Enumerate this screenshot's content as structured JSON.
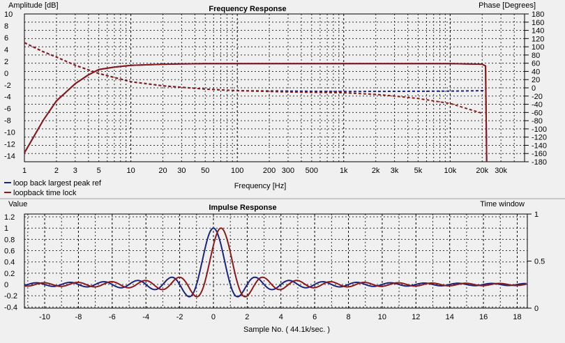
{
  "colors": {
    "background": "#f0f0f0",
    "series1": "#1a237e",
    "series2": "#8b1a1a",
    "grid": "#000000"
  },
  "legend": [
    {
      "label": "loop back largest peak ref",
      "color": "#1a237e"
    },
    {
      "label": "loopback time lock",
      "color": "#8b1a1a"
    }
  ],
  "chart_data": [
    {
      "type": "line",
      "title": "Frequency Response",
      "ylabel": "Amplitude [dB]",
      "y2label": "Phase [Degrees]",
      "xlabel": "Frequency [Hz]",
      "xscale": "log",
      "xlim": [
        1,
        50000
      ],
      "ylim": [
        -15,
        10
      ],
      "y2lim": [
        -180,
        180
      ],
      "xticks": [
        1,
        2,
        3,
        5,
        10,
        20,
        30,
        50,
        100,
        200,
        300,
        500,
        1000,
        2000,
        3000,
        5000,
        10000,
        20000,
        30000
      ],
      "xtick_labels": [
        "1",
        "2",
        "3",
        "5",
        "10",
        "20",
        "30",
        "50",
        "100",
        "200",
        "300",
        "500",
        "1k",
        "2k",
        "3k",
        "5k",
        "10k",
        "20k",
        "30k"
      ],
      "yticks": [
        10,
        8,
        6,
        4,
        2,
        0,
        -2,
        -4,
        -6,
        -8,
        -10,
        -12,
        -14
      ],
      "y2ticks": [
        180,
        160,
        140,
        120,
        100,
        80,
        60,
        40,
        20,
        0,
        -20,
        -40,
        -60,
        -80,
        -100,
        -120,
        -140,
        -160,
        -180
      ],
      "series": [
        {
          "name": "loop back largest peak ref",
          "axis": "left",
          "style": "solid",
          "color": "#1a237e",
          "x": [
            1,
            1.5,
            2,
            3,
            4,
            5,
            7,
            10,
            20,
            50,
            100,
            1000,
            10000,
            20000,
            21500,
            22050
          ],
          "y": [
            -13.5,
            -8,
            -4.7,
            -1.8,
            -0.3,
            0.6,
            1.0,
            1.3,
            1.5,
            1.6,
            1.6,
            1.6,
            1.6,
            1.5,
            1.2,
            -15
          ]
        },
        {
          "name": "loop back largest peak ref",
          "axis": "right",
          "style": "dashed",
          "color": "#1a237e",
          "x": [
            1,
            1.5,
            2,
            3,
            5,
            10,
            20,
            50,
            100,
            1000,
            10000,
            20000,
            21500,
            22050
          ],
          "y": [
            110,
            88,
            75,
            55,
            35,
            15,
            5,
            -3,
            -7,
            -9,
            -8,
            -7,
            -6,
            5
          ]
        },
        {
          "name": "loopback time lock",
          "axis": "left",
          "style": "solid",
          "color": "#8b1a1a",
          "x": [
            1,
            1.5,
            2,
            3,
            4,
            5,
            7,
            10,
            20,
            50,
            100,
            1000,
            10000,
            20000,
            21500,
            22050
          ],
          "y": [
            -13.5,
            -8,
            -4.7,
            -1.8,
            -0.3,
            0.6,
            1.0,
            1.3,
            1.5,
            1.6,
            1.6,
            1.6,
            1.6,
            1.5,
            1.2,
            -15
          ]
        },
        {
          "name": "loopback time lock",
          "axis": "right",
          "style": "dashed",
          "color": "#8b1a1a",
          "x": [
            1,
            1.5,
            2,
            3,
            5,
            10,
            20,
            50,
            100,
            300,
            1000,
            2000,
            3000,
            5000,
            10000,
            20000
          ],
          "y": [
            110,
            88,
            75,
            55,
            35,
            15,
            5,
            -3,
            -7,
            -10,
            -12,
            -16,
            -20,
            -26,
            -38,
            -62
          ]
        }
      ]
    },
    {
      "type": "line",
      "title": "Impulse Response",
      "ylabel": "Value",
      "y2label": "Time window",
      "xlabel": "Sample No. ( 44.1k/sec. )",
      "xlim": [
        -11.2,
        18.6
      ],
      "ylim": [
        -0.42,
        1.25
      ],
      "y2lim": [
        0,
        1
      ],
      "xticks": [
        -10,
        -8,
        -6,
        -4,
        -2,
        0,
        2,
        4,
        6,
        8,
        10,
        12,
        14,
        16,
        18
      ],
      "yticks": [
        1.2,
        1,
        0.8,
        0.6,
        0.4,
        0.2,
        0,
        -0.2,
        -0.4
      ],
      "y2ticks": [
        1,
        0.5,
        0
      ],
      "y2tick_labels": [
        "1",
        "0.5",
        "0"
      ],
      "series": [
        {
          "name": "loop back largest peak ref",
          "shift": 0,
          "color": "#1a237e"
        },
        {
          "name": "loopback time lock",
          "shift": 0.45,
          "color": "#8b1a1a"
        }
      ]
    }
  ]
}
